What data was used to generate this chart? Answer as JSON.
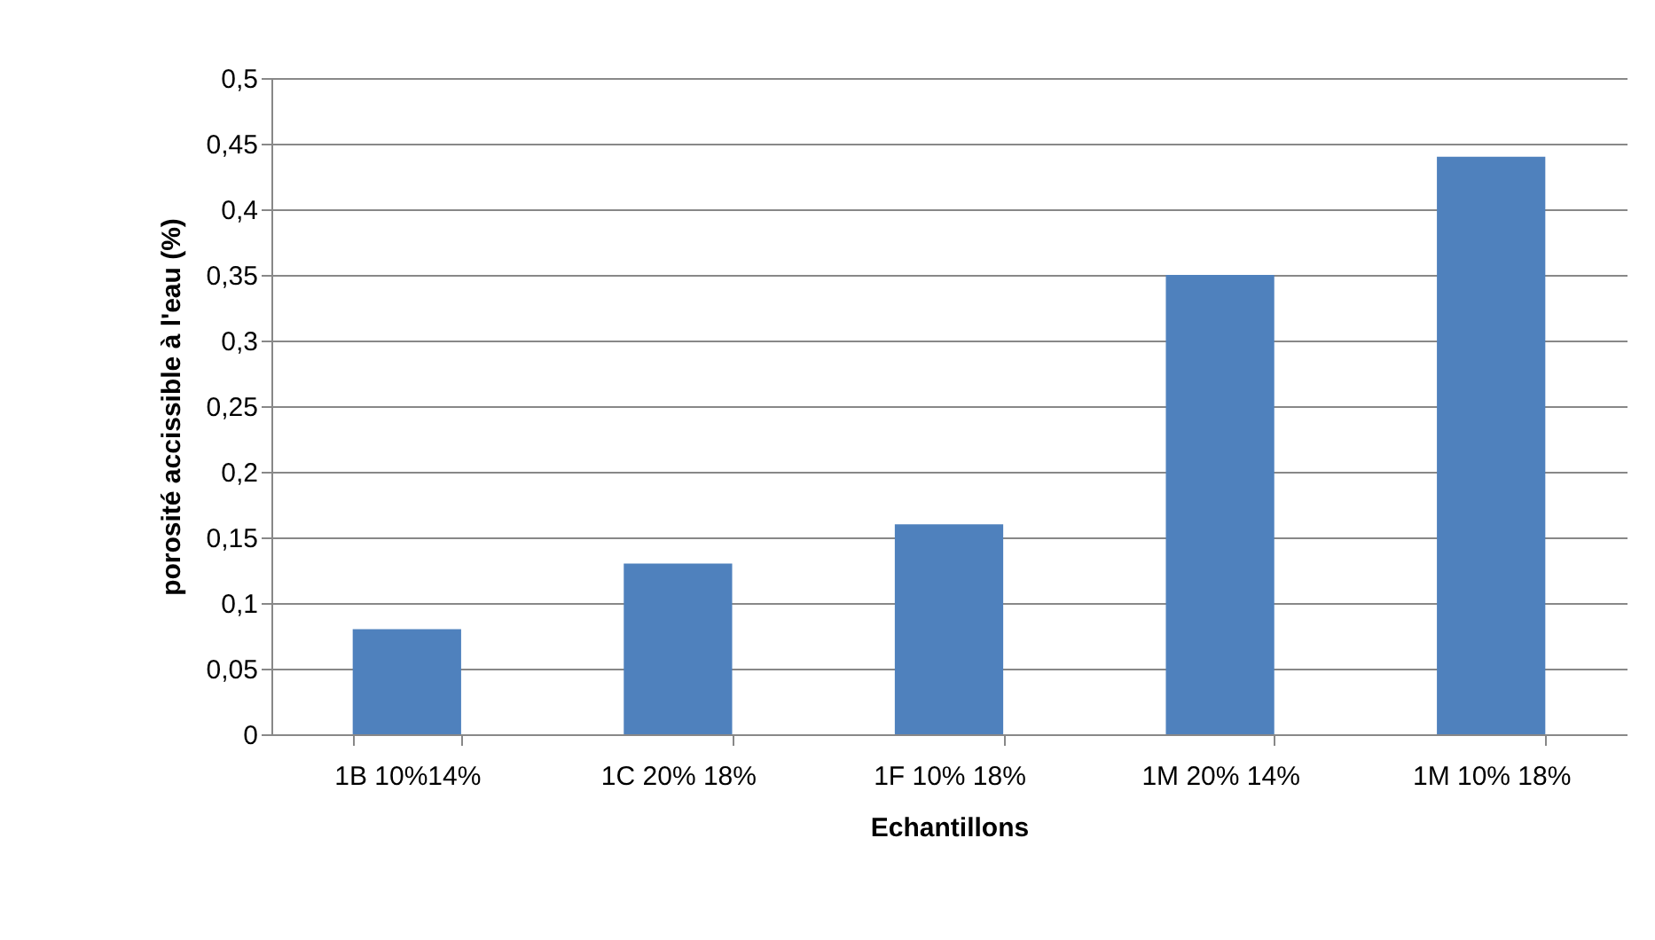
{
  "chart_data": {
    "type": "bar",
    "xlabel": "Echantillons",
    "ylabel": "porosité accissible à  l'eau (%)",
    "categories": [
      "1B 10%14%",
      "1C 20% 18%",
      "1F 10% 18%",
      "1M 20% 14%",
      "1M 10% 18%"
    ],
    "values": [
      0.08,
      0.13,
      0.16,
      0.35,
      0.44
    ],
    "color": "#4f81bd",
    "ylim": [
      0,
      0.5
    ],
    "yticks": [
      0,
      {
        "value": 0.05,
        "label": "0,05"
      },
      {
        "value": 0.1,
        "label": "0,1"
      },
      {
        "value": 0.15,
        "label": "0,15"
      },
      {
        "value": 0.2,
        "label": "0,2"
      },
      {
        "value": 0.25,
        "label": "0,25"
      },
      {
        "value": 0.3,
        "label": "0,3"
      },
      {
        "value": 0.35,
        "label": "0,35"
      },
      {
        "value": 0.4,
        "label": "0,4"
      },
      {
        "value": 0.45,
        "label": "0,45"
      },
      {
        "value": 0.5,
        "label": "0,5"
      }
    ],
    "grid": "y"
  }
}
